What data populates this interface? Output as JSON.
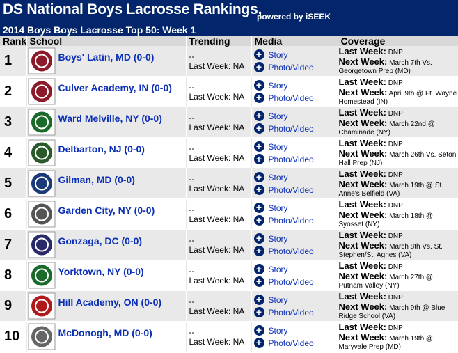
{
  "header": {
    "title": "DS National Boys Lacrosse Rankings,",
    "powered": "powered by iSEEK",
    "subtitle": "2014 Boys Boys Lacrosse Top 50: Week 1"
  },
  "columns": [
    "Rank",
    "School",
    "Trending",
    "Media",
    "Coverage"
  ],
  "labels": {
    "story": "Story",
    "photo": "Photo/Video",
    "last_week": "Last Week:",
    "next_week": "Next Week:",
    "trend_dash": "--",
    "trend_last": "Last Week: NA"
  },
  "rows": [
    {
      "rank": "1",
      "school": "Boys' Latin, MD (0-0)",
      "logo_color": "#8b1a2a",
      "logo_icon": "bl-monogram-logo",
      "last": "DNP",
      "next": "March 7th Vs. Georgetown Prep (MD)"
    },
    {
      "rank": "2",
      "school": "Culver Academy, IN (0-0)",
      "logo_color": "#8b1a2a",
      "logo_icon": "culver-logo",
      "last": "DNP",
      "next": "April 9th @ Ft. Wayne Homestead (IN)"
    },
    {
      "rank": "3",
      "school": "Ward Melville, NY (0-0)",
      "logo_color": "#1a6b2a",
      "logo_icon": "ward-melville-logo",
      "last": "DNP",
      "next": "March 22nd @ Chaminade (NY)"
    },
    {
      "rank": "4",
      "school": "Delbarton, NJ (0-0)",
      "logo_color": "#2a5a2a",
      "logo_icon": "delbarton-seal-logo",
      "last": "DNP",
      "next": "March 26th Vs. Seton Hall Prep (NJ)"
    },
    {
      "rank": "5",
      "school": "Gilman, MD (0-0)",
      "logo_color": "#1a3a7a",
      "logo_icon": "gilman-shield-logo",
      "last": "DNP",
      "next": "March 19th @ St. Anne's Belfield (VA)"
    },
    {
      "rank": "6",
      "school": "Garden City, NY (0-0)",
      "logo_color": "#555555",
      "logo_icon": "trojan-helmet-logo",
      "last": "DNP",
      "next": "March 18th @ Syosset (NY)"
    },
    {
      "rank": "7",
      "school": "Gonzaga, DC (0-0)",
      "logo_color": "#2a2a6a",
      "logo_icon": "gonzaga-seal-logo",
      "last": "DNP",
      "next": "March 8th Vs. St. Stephen/St. Agnes (VA)"
    },
    {
      "rank": "8",
      "school": "Yorktown, NY (0-0)",
      "logo_color": "#1a6b2a",
      "logo_icon": "yorktown-y-logo",
      "last": "DNP",
      "next": "March 27th @ Putnam Valley (NY)"
    },
    {
      "rank": "9",
      "school": "Hill Academy, ON (0-0)",
      "logo_color": "#b01a1a",
      "logo_icon": "hill-academy-logo",
      "last": "DNP",
      "next": "March 9th @ Blue Ridge School (VA)"
    },
    {
      "rank": "10",
      "school": "McDonogh, MD (0-0)",
      "logo_color": "#666666",
      "logo_icon": "mcdonogh-seal-logo",
      "last": "DNP",
      "next": "March 19th @ Maryvale Prep (MD)"
    }
  ]
}
